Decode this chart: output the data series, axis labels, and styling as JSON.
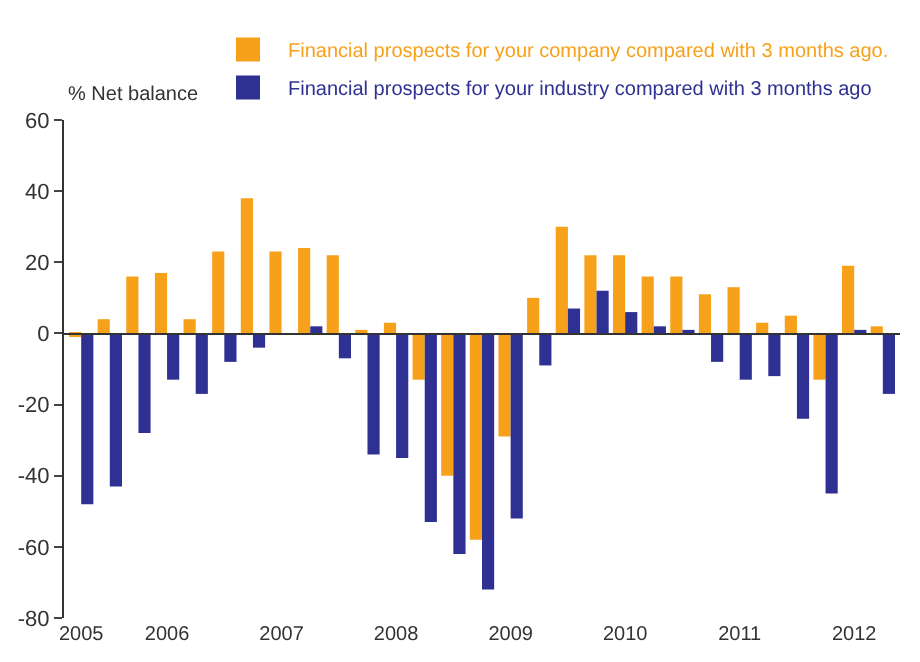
{
  "chart_data": {
    "type": "bar",
    "ylabel": "% Net balance",
    "categories": [
      "2005",
      null,
      null,
      "2006",
      null,
      null,
      null,
      "2007",
      null,
      null,
      null,
      "2008",
      null,
      null,
      null,
      "2009",
      null,
      null,
      null,
      "2010",
      null,
      null,
      null,
      "2011",
      null,
      null,
      null,
      "2012",
      null
    ],
    "series": [
      {
        "name": "Financial prospects for your company compared with 3 months ago.",
        "color": "#f7a11a",
        "values": [
          -1,
          4,
          16,
          17,
          4,
          23,
          38,
          23,
          24,
          22,
          1,
          3,
          -13,
          -40,
          -58,
          -29,
          10,
          30,
          22,
          22,
          16,
          16,
          11,
          13,
          3,
          5,
          -13,
          19,
          2
        ]
      },
      {
        "name": "Financial prospects for your industry compared with 3 months ago",
        "color": "#2e3192",
        "values": [
          -48,
          -43,
          -28,
          -13,
          -17,
          -8,
          -4,
          0,
          2,
          -7,
          -34,
          -35,
          -53,
          -62,
          -72,
          -52,
          -9,
          7,
          12,
          6,
          2,
          1,
          -8,
          -13,
          -12,
          -24,
          -45,
          1,
          -17
        ]
      }
    ],
    "ylim": [
      -80,
      60
    ],
    "yticks": [
      -80,
      -60,
      -40,
      -20,
      0,
      20,
      40,
      60
    ],
    "legend": "top right"
  }
}
